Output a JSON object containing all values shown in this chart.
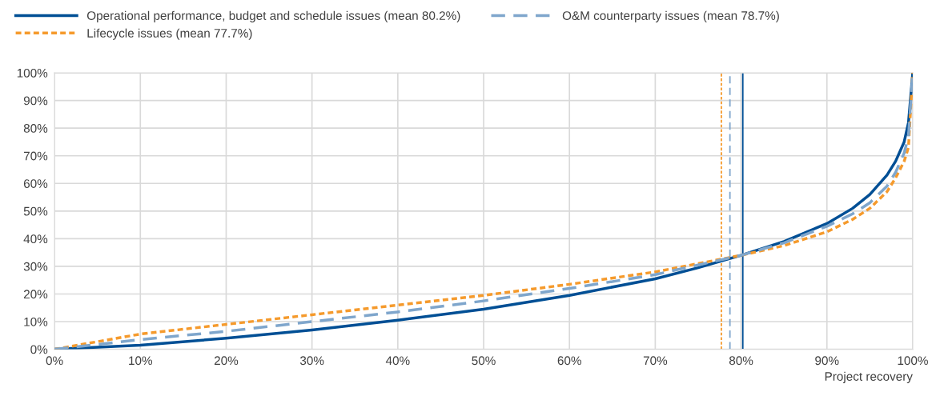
{
  "chart_data": {
    "type": "line",
    "xlabel": "Project recovery",
    "x": [
      0,
      10,
      20,
      30,
      40,
      50,
      60,
      70,
      75,
      80,
      85,
      90,
      93,
      95,
      97,
      98,
      99,
      99.5,
      100
    ],
    "series": [
      {
        "name": "Operational performance, budget and schedule issues (mean 80.2%)",
        "color": "#004f95",
        "line_style": "solid",
        "values": [
          0,
          1.5,
          4,
          7,
          10.5,
          14.5,
          19.5,
          25.5,
          29.5,
          34,
          39,
          45.5,
          51,
          56,
          63,
          68,
          75,
          82,
          100
        ]
      },
      {
        "name": "Lifecycle issues (mean 77.7%)",
        "color": "#f59a2c",
        "line_style": "dotted",
        "values": [
          0,
          5.5,
          9,
          12.5,
          16,
          19.5,
          23.5,
          28,
          31,
          34,
          37.5,
          42.5,
          47,
          51,
          57,
          62,
          68,
          73,
          100
        ]
      },
      {
        "name": "O&M counterparty issues (mean 78.7%)",
        "color": "#7fa6cc",
        "line_style": "dashed",
        "values": [
          0,
          3.5,
          6.5,
          10,
          13.5,
          17.5,
          22,
          27,
          30.5,
          34,
          38.5,
          44.5,
          49,
          53,
          59,
          64,
          71,
          77,
          100
        ]
      }
    ],
    "ref_lines": [
      {
        "axis": "x",
        "value": 80.2,
        "color": "#004f95",
        "line_style": "solid"
      },
      {
        "axis": "x",
        "value": 77.7,
        "color": "#f59a2c",
        "line_style": "dotted"
      },
      {
        "axis": "x",
        "value": 78.7,
        "color": "#7fa6cc",
        "line_style": "dashed"
      }
    ],
    "xlim": [
      0,
      100
    ],
    "ylim": [
      0,
      100
    ],
    "xticks": [
      {
        "value": 0,
        "label": "0%"
      },
      {
        "value": 10,
        "label": "10%"
      },
      {
        "value": 20,
        "label": "20%"
      },
      {
        "value": 30,
        "label": "30%"
      },
      {
        "value": 40,
        "label": "40%"
      },
      {
        "value": 50,
        "label": "50%"
      },
      {
        "value": 60,
        "label": "60%"
      },
      {
        "value": 70,
        "label": "70%"
      },
      {
        "value": 80,
        "label": "80%"
      },
      {
        "value": 90,
        "label": "90%"
      },
      {
        "value": 100,
        "label": "100%"
      }
    ],
    "yticks": [
      {
        "value": 0,
        "label": "0%"
      },
      {
        "value": 10,
        "label": "10%"
      },
      {
        "value": 20,
        "label": "20%"
      },
      {
        "value": 30,
        "label": "30%"
      },
      {
        "value": 40,
        "label": "40%"
      },
      {
        "value": 50,
        "label": "50%"
      },
      {
        "value": 60,
        "label": "60%"
      },
      {
        "value": 70,
        "label": "70%"
      },
      {
        "value": 80,
        "label": "80%"
      },
      {
        "value": 90,
        "label": "90%"
      },
      {
        "value": 100,
        "label": "100%"
      }
    ],
    "grid": true,
    "legend": "top",
    "marker": "none"
  }
}
